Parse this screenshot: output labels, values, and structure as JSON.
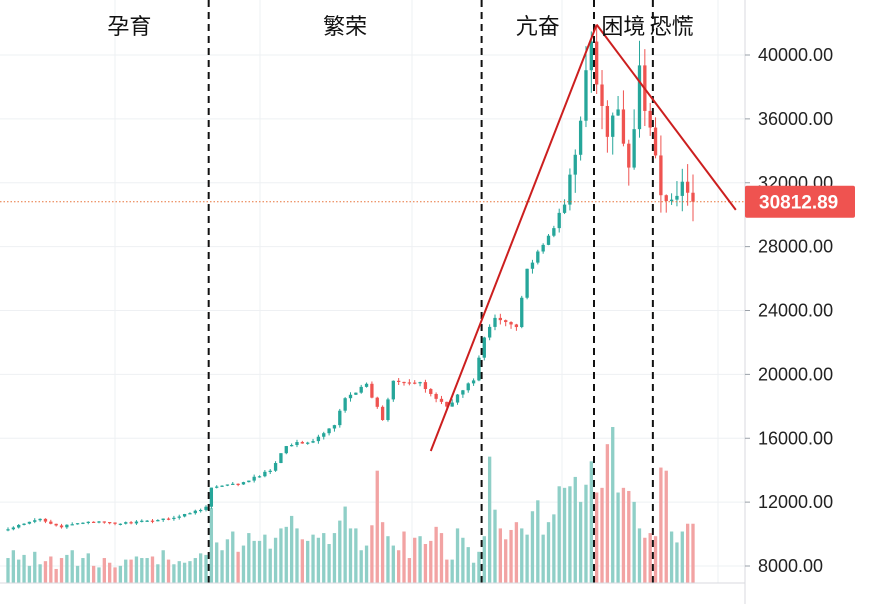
{
  "chart_data": {
    "type": "candlestick",
    "phases": [
      {
        "label": "孕育",
        "start": 0,
        "end": 38
      },
      {
        "label": "繁荣",
        "start": 38,
        "end": 89
      },
      {
        "label": "亢奋",
        "start": 89,
        "end": 110
      },
      {
        "label": "困境",
        "start": 110,
        "end": 121
      },
      {
        "label": "恐慌",
        "start": 121,
        "end": 128
      }
    ],
    "y_ticks": [
      "40000.00",
      "36000.00",
      "32000.00",
      "28000.00",
      "24000.00",
      "20000.00",
      "16000.00",
      "12000.00",
      "8000.00"
    ],
    "y_tick_values": [
      40000,
      36000,
      32000,
      28000,
      24000,
      20000,
      16000,
      12000,
      8000
    ],
    "ylim": [
      7000,
      42500
    ],
    "last_price": 30812.89,
    "last_price_label": "30812.89",
    "grid": true,
    "colors": {
      "up": "#26a69a",
      "down": "#ef5350",
      "volume_up": "#8fcfc7",
      "volume_down": "#f2a3a3",
      "trendline": "#cc1f1f",
      "price_line": "#e8743b",
      "price_tag_bg": "#ef5350",
      "grid": "#eef0f3"
    },
    "trendlines": [
      {
        "from": {
          "index": 79,
          "price": 15200
        },
        "to": {
          "index": 110,
          "price": 41900
        }
      },
      {
        "from": {
          "index": 110,
          "price": 41900
        },
        "to": {
          "index": 136,
          "price": 30300
        }
      }
    ],
    "anchors": [
      [
        0,
        10300
      ],
      [
        6,
        10950
      ],
      [
        10,
        10450
      ],
      [
        15,
        10800
      ],
      [
        20,
        10650
      ],
      [
        26,
        10800
      ],
      [
        32,
        11100
      ],
      [
        37,
        11700
      ],
      [
        38,
        12900
      ],
      [
        44,
        13200
      ],
      [
        49,
        14000
      ],
      [
        52,
        15600
      ],
      [
        57,
        15800
      ],
      [
        61,
        16800
      ],
      [
        63,
        18600
      ],
      [
        67,
        19300
      ],
      [
        70,
        17200
      ],
      [
        72,
        19700
      ],
      [
        77,
        19400
      ],
      [
        80,
        18500
      ],
      [
        82,
        18000
      ],
      [
        87,
        19700
      ],
      [
        89,
        22300
      ],
      [
        91,
        23500
      ],
      [
        95,
        23100
      ],
      [
        97,
        26600
      ],
      [
        100,
        28000
      ],
      [
        104,
        30600
      ],
      [
        106,
        34200
      ],
      [
        108,
        38600
      ],
      [
        109,
        40600
      ],
      [
        110,
        38200
      ],
      [
        112,
        34700
      ],
      [
        114,
        36800
      ],
      [
        116,
        33000
      ],
      [
        118,
        38800
      ],
      [
        119,
        36700
      ],
      [
        121,
        33700
      ],
      [
        122,
        31700
      ],
      [
        124,
        30900
      ],
      [
        127,
        31900
      ],
      [
        128,
        30800
      ]
    ],
    "volumes": [
      0.16,
      0.21,
      0.15,
      0.18,
      0.11,
      0.2,
      0.12,
      0.14,
      0.17,
      0.09,
      0.16,
      0.18,
      0.21,
      0.11,
      0.16,
      0.19,
      0.11,
      0.1,
      0.16,
      0.13,
      0.1,
      0.11,
      0.15,
      0.15,
      0.17,
      0.16,
      0.16,
      0.17,
      0.12,
      0.21,
      0.15,
      0.12,
      0.14,
      0.13,
      0.14,
      0.16,
      0.19,
      0.18,
      0.48,
      0.26,
      0.21,
      0.28,
      0.33,
      0.2,
      0.24,
      0.32,
      0.27,
      0.27,
      0.31,
      0.22,
      0.29,
      0.35,
      0.36,
      0.43,
      0.35,
      0.28,
      0.27,
      0.31,
      0.29,
      0.32,
      0.25,
      0.32,
      0.4,
      0.49,
      0.35,
      0.35,
      0.21,
      0.24,
      0.37,
      0.72,
      0.39,
      0.3,
      0.24,
      0.21,
      0.33,
      0.16,
      0.29,
      0.3,
      0.25,
      0.27,
      0.36,
      0.32,
      0.15,
      0.15,
      0.35,
      0.29,
      0.23,
      0.13,
      0.2,
      0.3,
      0.81,
      0.47,
      0.35,
      0.28,
      0.34,
      0.39,
      0.35,
      0.31,
      0.46,
      0.53,
      0.31,
      0.39,
      0.44,
      0.62,
      0.61,
      0.62,
      0.68,
      0.52,
      0.63,
      0.78,
      0.58,
      0.61,
      0.89,
      1.0,
      0.58,
      0.61,
      0.59,
      0.52,
      0.35,
      0.29,
      0.32,
      0.3,
      0.74,
      0.72,
      0.33,
      0.26,
      0.33,
      0.38,
      0.38
    ]
  }
}
